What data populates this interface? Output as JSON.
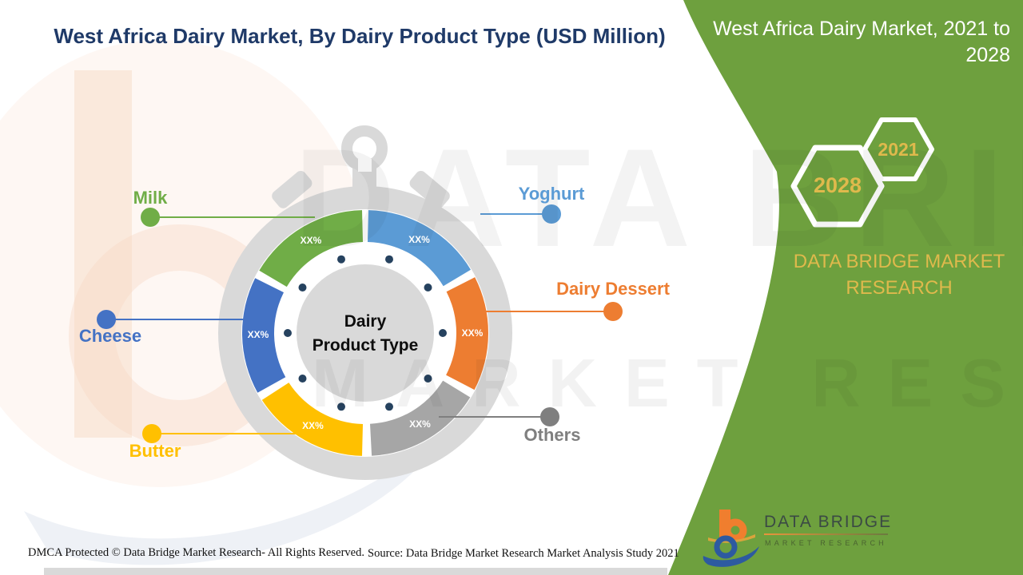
{
  "page": {
    "title": "West Africa Dairy Market, By Dairy Product Type (USD Million)"
  },
  "chart_data": {
    "type": "donut",
    "title": "West Africa Dairy Market, By Dairy Product Type (USD Million)",
    "unit": "USD Million",
    "center_line1": "Dairy",
    "center_line2": "Product Type",
    "frame_color": "#d9d9d9",
    "dot_color": "#26425f",
    "segments": [
      {
        "label": "Yoghurt",
        "value_label": "XX%",
        "color": "#5b9bd5",
        "label_color": "#5b9bd5",
        "start_deg": 1.5,
        "end_deg": 59
      },
      {
        "label": "Dairy Dessert",
        "value_label": "XX%",
        "color": "#ed7d31",
        "label_color": "#ed7d31",
        "start_deg": 63,
        "end_deg": 117.5
      },
      {
        "label": "Others",
        "value_label": "XX%",
        "color": "#a6a6a6",
        "label_color": "#7f7f7f",
        "start_deg": 121.5,
        "end_deg": 177
      },
      {
        "label": "Butter",
        "value_label": "XX%",
        "color": "#ffc000",
        "label_color": "#ffc000",
        "start_deg": 181.5,
        "end_deg": 237
      },
      {
        "label": "Cheese",
        "value_label": "XX%",
        "color": "#4472c4",
        "label_color": "#4472c4",
        "start_deg": 241,
        "end_deg": 296.5
      },
      {
        "label": "Milk",
        "value_label": "XX%",
        "color": "#70ad47",
        "label_color": "#70ad47",
        "start_deg": 300.5,
        "end_deg": 358.5
      }
    ]
  },
  "side_panel": {
    "heading": "West Africa Dairy Market, 2021 to 2028",
    "year_start": "2021",
    "year_end": "2028",
    "brand": "DATA BRIDGE MARKET RESEARCH",
    "bg_color": "#6ea03e",
    "accent_gold": "#dfb94c"
  },
  "footer": {
    "dmca": "DMCA Protected © Data Bridge Market Research- All Rights Reserved.",
    "source": "Source: Data Bridge Market Research Market Analysis Study 2021"
  },
  "logo": {
    "name": "DATA BRIDGE",
    "tagline": "MARKET RESEARCH"
  },
  "watermark": {
    "line1": "DATA BRIDGE",
    "line2": "MARKET RESEARCH"
  }
}
